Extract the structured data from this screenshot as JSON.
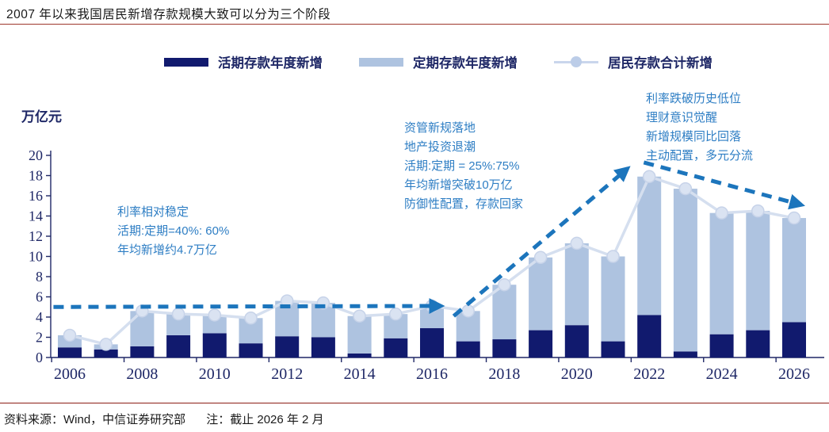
{
  "header": {
    "title": "2007 年以来我国居民新增存款规模大致可以分为三个阶段",
    "underline_color": "#9e372b"
  },
  "legend": [
    {
      "label": "活期存款年度新增",
      "type": "bar",
      "color": "#111a6e"
    },
    {
      "label": "定期存款年度新增",
      "type": "bar",
      "color": "#aec3e0"
    },
    {
      "label": "居民存款合计新增",
      "type": "line",
      "color": "#c9d6ec",
      "marker_color": "#bccde8"
    }
  ],
  "chart_data": {
    "type": "bar",
    "subtype": "stacked-bars-with-line",
    "title": "2007 年以来我国居民新增存款规模大致可以分为三个阶段",
    "ylabel": "万亿元",
    "xlabel": "",
    "ylim": [
      0,
      20
    ],
    "ytick_step": 2,
    "grid": false,
    "legend_position": "top",
    "categories": [
      "2006",
      "2007",
      "2008",
      "2009",
      "2010",
      "2011",
      "2012",
      "2013",
      "2014",
      "2015",
      "2016",
      "2017",
      "2018",
      "2019",
      "2020",
      "2021",
      "2022",
      "2023",
      "2024",
      "2025",
      "2026"
    ],
    "xtick_labels": [
      "2006",
      "2008",
      "2010",
      "2012",
      "2014",
      "2016",
      "2018",
      "2020",
      "2022",
      "2024",
      "2026"
    ],
    "series": [
      {
        "name": "活期存款年度新增",
        "type": "bar-stacked",
        "color": "#111a6e",
        "values": [
          1.0,
          0.8,
          1.1,
          2.2,
          2.4,
          1.4,
          2.1,
          2.0,
          0.4,
          1.9,
          2.9,
          1.6,
          1.8,
          2.7,
          3.2,
          1.6,
          4.2,
          0.6,
          2.3,
          2.7,
          3.5
        ]
      },
      {
        "name": "定期存款年度新增",
        "type": "bar-stacked",
        "color": "#aec3e0",
        "values": [
          1.2,
          0.5,
          3.5,
          2.1,
          1.8,
          2.5,
          3.5,
          3.4,
          3.7,
          2.4,
          2.2,
          3.0,
          5.4,
          7.2,
          8.1,
          8.4,
          13.7,
          16.1,
          12.0,
          11.8,
          10.3
        ]
      },
      {
        "name": "居民存款合计新增",
        "type": "line",
        "color": "#d5dfef",
        "marker_fill": "#dae3f2",
        "marker_stroke": "#c7d3e9",
        "values": [
          2.2,
          1.3,
          4.6,
          4.3,
          4.2,
          3.9,
          5.6,
          5.4,
          4.1,
          4.3,
          5.1,
          4.6,
          7.2,
          9.9,
          11.3,
          10.0,
          17.9,
          16.7,
          14.3,
          14.5,
          13.8
        ]
      }
    ],
    "stage_arrows": [
      {
        "from": {
          "year": 2005.55,
          "value": 5.0
        },
        "to": {
          "year": 2016.25,
          "value": 5.1
        }
      },
      {
        "from": {
          "year": 2016.6,
          "value": 4.1
        },
        "to": {
          "year": 2021.4,
          "value": 18.7
        }
      },
      {
        "from": {
          "year": 2021.85,
          "value": 19.3
        },
        "to": {
          "year": 2026.2,
          "value": 15.1
        }
      }
    ],
    "arrow_color": "#1c75bc",
    "axis_color": "#1e2766"
  },
  "annotations": [
    {
      "lines": [
        "利率相对稳定",
        "活期:定期=40%: 60%",
        "年均新增约4.7万亿"
      ]
    },
    {
      "lines": [
        "资管新规落地",
        "地产投资退潮",
        "活期:定期 = 25%:75%",
        "年均新增突破10万亿",
        "防御性配置，存款回家"
      ]
    },
    {
      "lines": [
        "利率跌破历史低位",
        "理财意识觉醒",
        "新增规模同比回落",
        "主动配置，多元分流"
      ]
    }
  ],
  "footer": {
    "source": "资料来源：Wind，中信证券研究部",
    "note": "注：截止 2026 年 2 月"
  }
}
